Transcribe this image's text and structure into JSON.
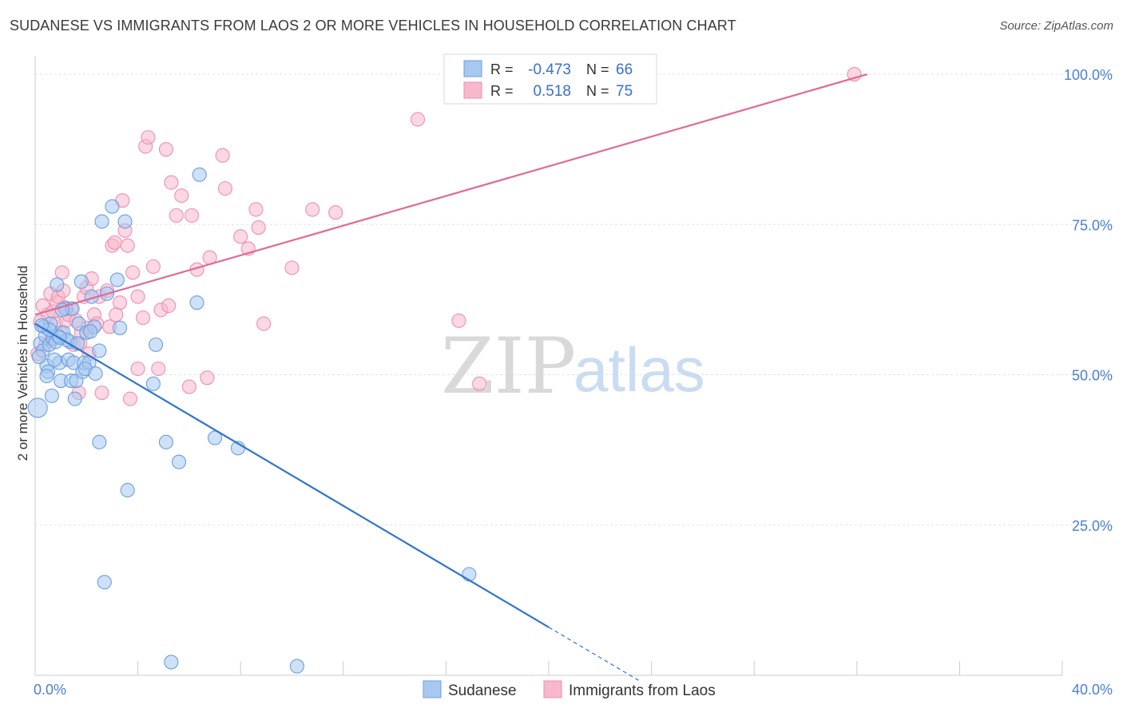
{
  "header": {
    "title": "SUDANESE VS IMMIGRANTS FROM LAOS 2 OR MORE VEHICLES IN HOUSEHOLD CORRELATION CHART",
    "source": "Source: ZipAtlas.com"
  },
  "watermark": {
    "zip": "ZIP",
    "atlas": "atlas"
  },
  "legend_box": {
    "row1": {
      "r_label": "R =",
      "r_value": "-0.473",
      "n_label": "N =",
      "n_value": "66"
    },
    "row2": {
      "r_label": "R =",
      "r_value": "0.518",
      "n_label": "N =",
      "n_value": "75"
    }
  },
  "colors": {
    "blue_fill": "#a8c8f0",
    "blue_stroke": "#6a9fe0",
    "blue_line": "#2f74d0",
    "pink_fill": "#f7b8cc",
    "pink_stroke": "#ee8fae",
    "pink_line": "#e06a95",
    "grid": "#e3e3e3",
    "tick_text": "#4a7fd4"
  },
  "chart_data": {
    "type": "scatter",
    "title": "SUDANESE VS IMMIGRANTS FROM LAOS 2 OR MORE VEHICLES IN HOUSEHOLD CORRELATION CHART",
    "xlabel": "",
    "ylabel": "2 or more Vehicles in Household",
    "xlim": [
      0,
      40
    ],
    "ylim": [
      0,
      102
    ],
    "x_tick_labels": [
      "0.0%",
      "40.0%"
    ],
    "y_ticks": [
      25,
      50,
      75,
      100
    ],
    "y_tick_labels": [
      "25.0%",
      "50.0%",
      "75.0%",
      "100.0%"
    ],
    "grid": true,
    "legend": "bottom-center",
    "series": [
      {
        "name": "Sudanese",
        "color": "#a8c8f0",
        "trend": {
          "x0": 0,
          "y0": 58.5,
          "x1": 20.0,
          "y1": 8.0,
          "dashed_to_x": 23.5
        },
        "points": [
          [
            0.1,
            44.5
          ],
          [
            0.2,
            55.2
          ],
          [
            0.3,
            54.0
          ],
          [
            0.35,
            58.0
          ],
          [
            0.4,
            56.5
          ],
          [
            0.45,
            51.5
          ],
          [
            0.5,
            50.5
          ],
          [
            0.55,
            55.0
          ],
          [
            0.6,
            58.5
          ],
          [
            0.65,
            46.5
          ],
          [
            0.7,
            56.0
          ],
          [
            0.8,
            55.5
          ],
          [
            0.85,
            65.0
          ],
          [
            0.9,
            56.5
          ],
          [
            0.95,
            52.0
          ],
          [
            1.0,
            49.0
          ],
          [
            1.1,
            57.0
          ],
          [
            1.2,
            61.0
          ],
          [
            1.3,
            52.5
          ],
          [
            1.35,
            55.5
          ],
          [
            1.4,
            49.0
          ],
          [
            1.5,
            52.0
          ],
          [
            1.55,
            46.0
          ],
          [
            1.6,
            49.0
          ],
          [
            1.7,
            58.5
          ],
          [
            1.8,
            65.5
          ],
          [
            1.85,
            50.5
          ],
          [
            1.9,
            52.0
          ],
          [
            2.0,
            57.0
          ],
          [
            2.1,
            52.0
          ],
          [
            2.2,
            63.0
          ],
          [
            2.3,
            58.0
          ],
          [
            2.5,
            54.0
          ],
          [
            2.5,
            38.8
          ],
          [
            2.6,
            75.5
          ],
          [
            2.7,
            15.5
          ],
          [
            2.8,
            63.5
          ],
          [
            3.0,
            78.0
          ],
          [
            3.2,
            65.8
          ],
          [
            3.3,
            57.8
          ],
          [
            3.5,
            75.5
          ],
          [
            3.6,
            30.8
          ],
          [
            4.7,
            55.0
          ],
          [
            4.6,
            48.5
          ],
          [
            5.1,
            38.8
          ],
          [
            5.3,
            2.2
          ],
          [
            5.6,
            35.5
          ],
          [
            6.3,
            62.0
          ],
          [
            6.4,
            83.3
          ],
          [
            7.0,
            39.5
          ],
          [
            7.9,
            37.8
          ],
          [
            10.2,
            1.5
          ],
          [
            16.9,
            16.8
          ],
          [
            1.45,
            61.0
          ],
          [
            0.75,
            52.5
          ],
          [
            1.25,
            55.8
          ],
          [
            0.55,
            57.5
          ],
          [
            2.15,
            57.2
          ],
          [
            1.95,
            51.0
          ],
          [
            0.25,
            58.2
          ],
          [
            1.05,
            60.8
          ],
          [
            0.15,
            53.0
          ],
          [
            0.95,
            56.2
          ],
          [
            1.65,
            55.2
          ],
          [
            2.35,
            50.2
          ],
          [
            0.45,
            49.8
          ]
        ]
      },
      {
        "name": "Immigrants from Laos",
        "color": "#f7b8cc",
        "trend": {
          "x0": 0,
          "y0": 60.0,
          "x1": 32.4,
          "y1": 100.0
        },
        "points": [
          [
            0.1,
            53.5
          ],
          [
            0.3,
            61.5
          ],
          [
            0.4,
            55.0
          ],
          [
            0.5,
            60.0
          ],
          [
            0.6,
            63.5
          ],
          [
            0.7,
            60.5
          ],
          [
            0.8,
            58.5
          ],
          [
            0.85,
            62.0
          ],
          [
            0.9,
            63.0
          ],
          [
            1.0,
            57.0
          ],
          [
            1.05,
            67.0
          ],
          [
            1.1,
            64.0
          ],
          [
            1.2,
            59.0
          ],
          [
            1.3,
            60.0
          ],
          [
            1.4,
            61.0
          ],
          [
            1.5,
            55.0
          ],
          [
            1.6,
            59.0
          ],
          [
            1.7,
            47.0
          ],
          [
            1.8,
            57.0
          ],
          [
            1.9,
            63.0
          ],
          [
            2.0,
            64.5
          ],
          [
            2.1,
            53.5
          ],
          [
            2.2,
            66.0
          ],
          [
            2.3,
            60.0
          ],
          [
            2.4,
            58.5
          ],
          [
            2.5,
            63.0
          ],
          [
            2.6,
            47.0
          ],
          [
            2.8,
            64.0
          ],
          [
            3.0,
            71.5
          ],
          [
            3.1,
            72.0
          ],
          [
            3.3,
            62.0
          ],
          [
            3.4,
            79.0
          ],
          [
            3.5,
            74.0
          ],
          [
            3.6,
            71.5
          ],
          [
            3.8,
            67.0
          ],
          [
            3.7,
            46.0
          ],
          [
            4.0,
            63.0
          ],
          [
            4.0,
            51.0
          ],
          [
            4.2,
            59.5
          ],
          [
            4.3,
            88.0
          ],
          [
            4.4,
            89.5
          ],
          [
            4.6,
            68.0
          ],
          [
            4.8,
            51.0
          ],
          [
            4.9,
            60.8
          ],
          [
            5.1,
            87.5
          ],
          [
            5.2,
            61.5
          ],
          [
            5.3,
            82.0
          ],
          [
            5.5,
            76.5
          ],
          [
            5.7,
            79.8
          ],
          [
            6.0,
            48.0
          ],
          [
            6.1,
            76.5
          ],
          [
            6.3,
            67.5
          ],
          [
            6.7,
            49.5
          ],
          [
            6.8,
            69.5
          ],
          [
            7.3,
            86.5
          ],
          [
            7.4,
            81.0
          ],
          [
            8.0,
            73.0
          ],
          [
            8.3,
            71.0
          ],
          [
            8.6,
            77.5
          ],
          [
            8.7,
            74.5
          ],
          [
            8.9,
            58.5
          ],
          [
            10.0,
            67.8
          ],
          [
            10.8,
            77.5
          ],
          [
            11.7,
            77.0
          ],
          [
            14.9,
            92.5
          ],
          [
            16.5,
            59.0
          ],
          [
            17.3,
            48.5
          ],
          [
            31.9,
            100.0
          ],
          [
            0.2,
            58.8
          ],
          [
            1.15,
            61.2
          ],
          [
            2.05,
            57.8
          ],
          [
            0.65,
            56.0
          ],
          [
            1.75,
            55.2
          ],
          [
            2.9,
            58.0
          ],
          [
            3.15,
            60.0
          ]
        ]
      }
    ]
  },
  "bottom_legend": {
    "sudanese": "Sudanese",
    "laos": "Immigrants from Laos"
  }
}
